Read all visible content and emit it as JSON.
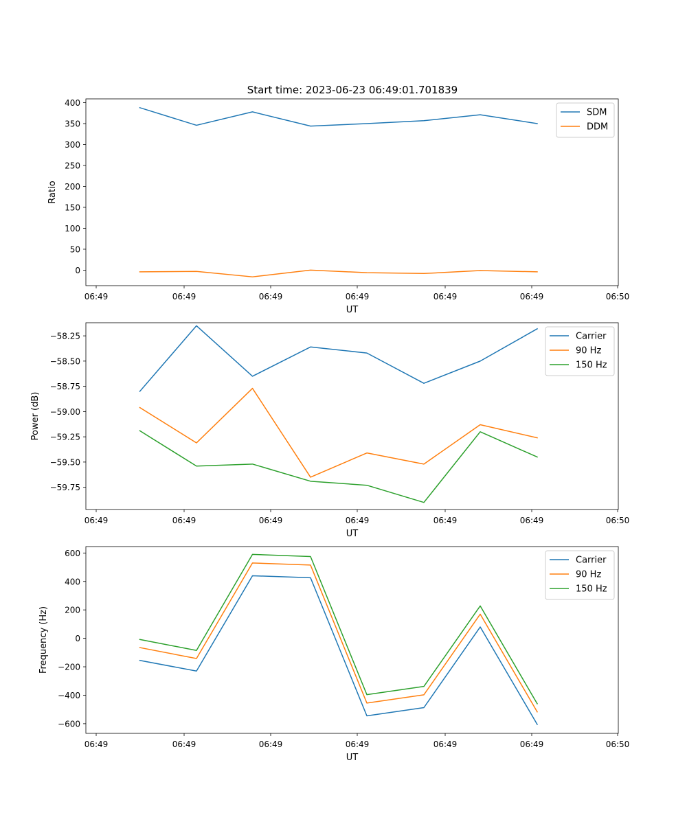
{
  "figure_title": "Start time: 2023-06-23 06:49:01.701839",
  "chart_data": [
    {
      "type": "line",
      "title": "Start time: 2023-06-23 06:49:01.701839",
      "xlabel": "UT",
      "ylabel": "Ratio",
      "x_tick_labels": [
        "06:49",
        "06:49",
        "06:49",
        "06:49",
        "06:49",
        "06:49",
        "06:49"
      ],
      "x_end_tick_label": "06:50",
      "y_ticks": [
        0,
        50,
        100,
        150,
        200,
        250,
        300,
        350,
        400
      ],
      "y_tick_labels": [
        "0",
        "50",
        "100",
        "150",
        "200",
        "250",
        "300",
        "350",
        "400"
      ],
      "ylim": [
        -37,
        409
      ],
      "legend": "upper right",
      "grid": false,
      "series": [
        {
          "name": "SDM",
          "color": "#1f77b4",
          "values": [
            388,
            346,
            378,
            344,
            350,
            357,
            371,
            350
          ]
        },
        {
          "name": "DDM",
          "color": "#ff7f0e",
          "values": [
            -4,
            -3,
            -16,
            0,
            -6,
            -8,
            -1,
            -4
          ]
        }
      ]
    },
    {
      "type": "line",
      "xlabel": "UT",
      "ylabel": "Power (dB)",
      "x_tick_labels": [
        "06:49",
        "06:49",
        "06:49",
        "06:49",
        "06:49",
        "06:49",
        "06:49"
      ],
      "x_end_tick_label": "06:50",
      "y_ticks": [
        -59.75,
        -59.5,
        -59.25,
        -59.0,
        -58.75,
        -58.5,
        -58.25
      ],
      "y_tick_labels": [
        "−59.75",
        "−59.50",
        "−59.25",
        "−59.00",
        "−58.75",
        "−58.50",
        "−58.25"
      ],
      "ylim": [
        -59.97,
        -58.12
      ],
      "legend": "upper right",
      "grid": false,
      "series": [
        {
          "name": "Carrier",
          "color": "#1f77b4",
          "values": [
            -58.8,
            -58.15,
            -58.65,
            -58.36,
            -58.42,
            -58.72,
            -58.5,
            -58.18
          ]
        },
        {
          "name": "90 Hz",
          "color": "#ff7f0e",
          "values": [
            -58.96,
            -59.31,
            -58.77,
            -59.65,
            -59.41,
            -59.52,
            -59.13,
            -59.26
          ]
        },
        {
          "name": "150 Hz",
          "color": "#2ca02c",
          "values": [
            -59.19,
            -59.54,
            -59.52,
            -59.69,
            -59.73,
            -59.9,
            -59.2,
            -59.45
          ]
        }
      ]
    },
    {
      "type": "line",
      "xlabel": "UT",
      "ylabel": "Frequency (Hz)",
      "x_tick_labels": [
        "06:49",
        "06:49",
        "06:49",
        "06:49",
        "06:49",
        "06:49",
        "06:49"
      ],
      "x_end_tick_label": "06:50",
      "y_ticks": [
        -600,
        -400,
        -200,
        0,
        200,
        400,
        600
      ],
      "y_tick_labels": [
        "−600",
        "−400",
        "−200",
        "0",
        "200",
        "400",
        "600"
      ],
      "ylim": [
        -668,
        645
      ],
      "legend": "upper right",
      "grid": false,
      "series": [
        {
          "name": "Carrier",
          "color": "#1f77b4",
          "values": [
            -155,
            -230,
            440,
            426,
            -545,
            -487,
            80,
            -605
          ]
        },
        {
          "name": "90 Hz",
          "color": "#ff7f0e",
          "values": [
            -65,
            -142,
            530,
            515,
            -455,
            -397,
            170,
            -517
          ]
        },
        {
          "name": "150 Hz",
          "color": "#2ca02c",
          "values": [
            -8,
            -85,
            590,
            575,
            -396,
            -338,
            228,
            -460
          ]
        }
      ]
    }
  ]
}
